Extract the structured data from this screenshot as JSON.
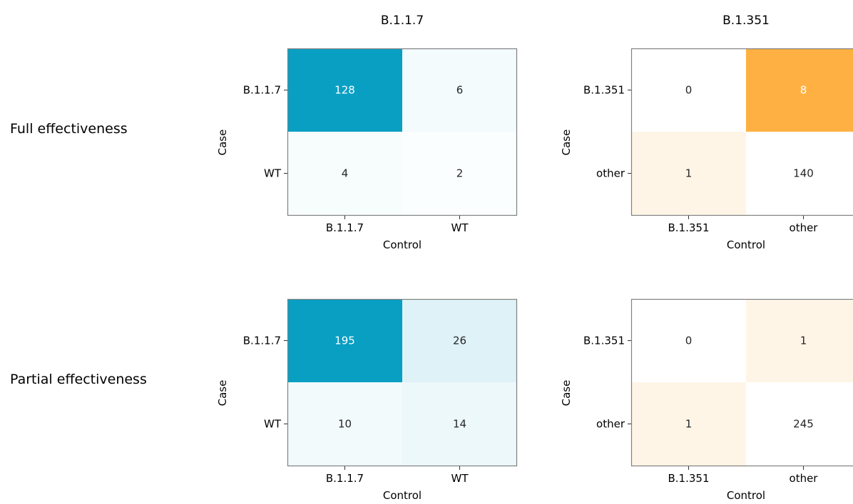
{
  "chart_data": [
    {
      "type": "heatmap",
      "panel": "B.1.1.7 / Full effectiveness",
      "title": "B.1.1.7",
      "row_label": "Full effectiveness",
      "xlabel": "Control",
      "ylabel": "Case",
      "x_categories": [
        "B.1.1.7",
        "WT"
      ],
      "y_categories": [
        "B.1.1.7",
        "WT"
      ],
      "values": [
        [
          128,
          6
        ],
        [
          4,
          2
        ]
      ],
      "max_value": 128,
      "color": "#089fc3"
    },
    {
      "type": "heatmap",
      "panel": "B.1.351 / Full effectiveness",
      "title": "B.1.351",
      "xlabel": "Control",
      "ylabel": "Case",
      "x_categories": [
        "B.1.351",
        "other"
      ],
      "y_categories": [
        "B.1.351",
        "other"
      ],
      "values": [
        [
          0,
          8
        ],
        [
          1,
          140
        ]
      ],
      "color_values": [
        [
          0,
          8
        ],
        [
          1,
          0
        ]
      ],
      "max_value": 8,
      "color": "#ffb042"
    },
    {
      "type": "heatmap",
      "panel": "B.1.1.7 / Partial effectiveness",
      "row_label": "Partial effectiveness",
      "xlabel": "Control",
      "ylabel": "Case",
      "x_categories": [
        "B.1.1.7",
        "WT"
      ],
      "y_categories": [
        "B.1.1.7",
        "WT"
      ],
      "values": [
        [
          195,
          26
        ],
        [
          10,
          14
        ]
      ],
      "max_value": 195,
      "color": "#089fc3"
    },
    {
      "type": "heatmap",
      "panel": "B.1.351 / Partial effectiveness",
      "xlabel": "Control",
      "ylabel": "Case",
      "x_categories": [
        "B.1.351",
        "other"
      ],
      "y_categories": [
        "B.1.351",
        "other"
      ],
      "values": [
        [
          0,
          1
        ],
        [
          1,
          245
        ]
      ],
      "color_values": [
        [
          0,
          1
        ],
        [
          1,
          0
        ]
      ],
      "max_value": 8,
      "color": "#ffb042"
    }
  ]
}
